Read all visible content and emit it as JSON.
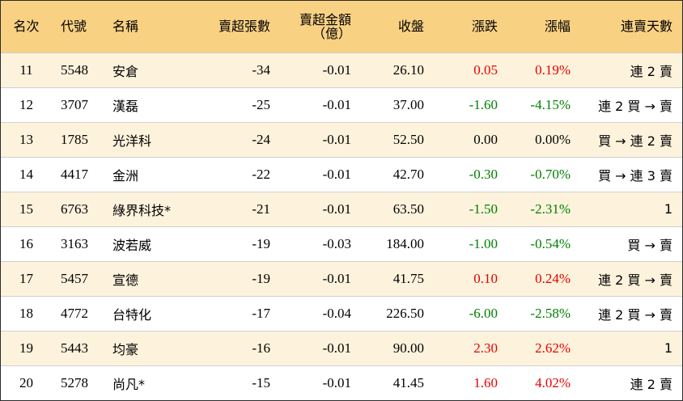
{
  "headers": {
    "rank": "名次",
    "code": "代號",
    "name": "名稱",
    "net_sell_lots": "賣超張數",
    "net_sell_amount_line1": "賣超金額",
    "net_sell_amount_line2": "（億）",
    "close": "收盤",
    "change": "漲跌",
    "change_pct": "漲幅",
    "consecutive_days": "連賣天數"
  },
  "colors": {
    "header_bg": "#f9d183",
    "stripe_bg": "#fdf2dc",
    "up": "#e60000",
    "down": "#008000"
  },
  "rows": [
    {
      "rank": "11",
      "code": "5548",
      "name": "安倉",
      "lots": "-34",
      "amount": "-0.01",
      "close": "26.10",
      "change": "0.05",
      "pct": "0.19%",
      "dir": "up",
      "days": "連 2 賣"
    },
    {
      "rank": "12",
      "code": "3707",
      "name": "漢磊",
      "lots": "-25",
      "amount": "-0.01",
      "close": "37.00",
      "change": "-1.60",
      "pct": "-4.15%",
      "dir": "down",
      "days": "連 2 買 → 賣"
    },
    {
      "rank": "13",
      "code": "1785",
      "name": "光洋科",
      "lots": "-24",
      "amount": "-0.01",
      "close": "52.50",
      "change": "0.00",
      "pct": "0.00%",
      "dir": "flat",
      "days": "買 → 連 2 賣"
    },
    {
      "rank": "14",
      "code": "4417",
      "name": "金洲",
      "lots": "-22",
      "amount": "-0.01",
      "close": "42.70",
      "change": "-0.30",
      "pct": "-0.70%",
      "dir": "down",
      "days": "買 → 連 3 賣"
    },
    {
      "rank": "15",
      "code": "6763",
      "name": "綠界科技*",
      "lots": "-21",
      "amount": "-0.01",
      "close": "63.50",
      "change": "-1.50",
      "pct": "-2.31%",
      "dir": "down",
      "days": "1"
    },
    {
      "rank": "16",
      "code": "3163",
      "name": "波若威",
      "lots": "-19",
      "amount": "-0.03",
      "close": "184.00",
      "change": "-1.00",
      "pct": "-0.54%",
      "dir": "down",
      "days": "買 → 賣"
    },
    {
      "rank": "17",
      "code": "5457",
      "name": "宣德",
      "lots": "-19",
      "amount": "-0.01",
      "close": "41.75",
      "change": "0.10",
      "pct": "0.24%",
      "dir": "up",
      "days": "連 2 買 → 賣"
    },
    {
      "rank": "18",
      "code": "4772",
      "name": "台特化",
      "lots": "-17",
      "amount": "-0.04",
      "close": "226.50",
      "change": "-6.00",
      "pct": "-2.58%",
      "dir": "down",
      "days": "連 2 買 → 賣"
    },
    {
      "rank": "19",
      "code": "5443",
      "name": "均豪",
      "lots": "-16",
      "amount": "-0.01",
      "close": "90.00",
      "change": "2.30",
      "pct": "2.62%",
      "dir": "up",
      "days": "1"
    },
    {
      "rank": "20",
      "code": "5278",
      "name": "尚凡*",
      "lots": "-15",
      "amount": "-0.01",
      "close": "41.45",
      "change": "1.60",
      "pct": "4.02%",
      "dir": "up",
      "days": "連 2 賣"
    }
  ]
}
